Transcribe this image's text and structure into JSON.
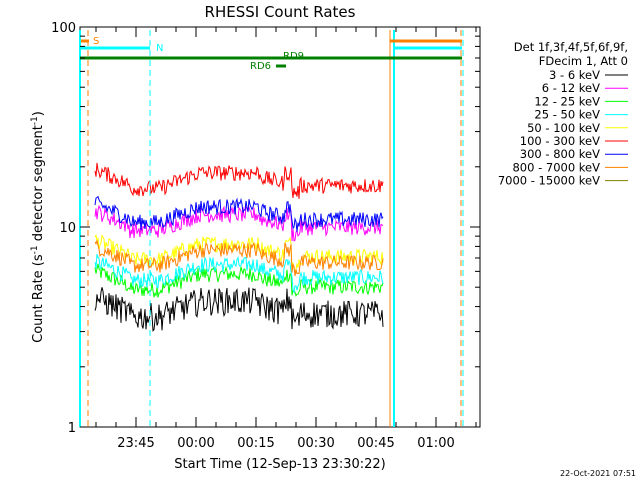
{
  "chart_data": {
    "type": "line",
    "title": "RHESSI Count Rates",
    "xlabel": "Start Time (12-Sep-13 23:30:22)",
    "ylabel": "Count Rate (s",
    "ylabel_sup": "-1",
    "ylabel_mid": " detector segment",
    "ylabel_sup2": "-1",
    "ylabel_end": ")",
    "y_scale": "log",
    "ylim": [
      1,
      100
    ],
    "y_ticks": [
      "1",
      "10",
      "100"
    ],
    "x_ticks": [
      "23:45",
      "00:00",
      "00:15",
      "00:30",
      "00:45",
      "01:00"
    ],
    "legend_header": [
      "Det 1f,3f,4f,5f,6f,9f,",
      "FDecim 1, Att 0"
    ],
    "legend_position": "right",
    "series": [
      {
        "name": "3 - 6 keV",
        "color": "#000000",
        "level": 3.9
      },
      {
        "name": "6 - 12 keV",
        "color": "#ff00ff",
        "level": 10.5
      },
      {
        "name": "12 - 25 keV",
        "color": "#00ff00",
        "level": 5.3
      },
      {
        "name": "25 - 50 keV",
        "color": "#00ffff",
        "level": 5.9
      },
      {
        "name": "50 - 100 keV",
        "color": "#ffff00",
        "level": 7.5
      },
      {
        "name": "100 - 300 keV",
        "color": "#ff0000",
        "level": 17.0
      },
      {
        "name": "300 - 800 keV",
        "color": "#0000ff",
        "level": 11.5
      },
      {
        "name": "800 - 7000 keV",
        "color": "#ff8000",
        "level": 7.0
      },
      {
        "name": "7000 - 15000 keV",
        "color": "#808000",
        "level": 6.5
      }
    ],
    "annotations": {
      "s_label": "S",
      "n_label": "N",
      "rd9_label": "RD9",
      "rd6_label": "RD6"
    },
    "timestamp": "22-Oct-2021 07:51"
  }
}
